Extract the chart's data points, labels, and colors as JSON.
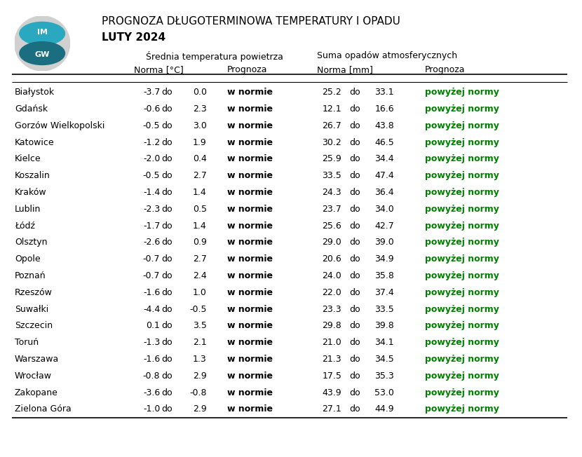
{
  "title1": "PROGNOZA DŁUGOTERMINOWA TEMPERATURY I OPADU",
  "title2": "LUTY 2024",
  "header_temp": "Średnia temperatura powietrza",
  "header_precip": "Suma opadów atmosferycznych",
  "subheader_temp_norma": "Norma [°C]",
  "subheader_temp_prog": "Prognoza",
  "subheader_precip_norma": "Norma [mm]",
  "subheader_precip_prog": "Prognoza",
  "cities": [
    "Białystok",
    "Gdańsk",
    "Gorzów Wielkopolski",
    "Katowice",
    "Kielce",
    "Koszalin",
    "Kraków",
    "Lublin",
    "Łódź",
    "Olsztyn",
    "Opole",
    "Poznań",
    "Rzeszów",
    "Suwałki",
    "Szczecin",
    "Toruń",
    "Warszawa",
    "Wrocław",
    "Zakopane",
    "Zielona Góra"
  ],
  "temp_norma_low": [
    -3.7,
    -0.6,
    -0.5,
    -1.2,
    -2.0,
    -0.5,
    -1.4,
    -2.3,
    -1.7,
    -2.6,
    -0.7,
    -0.7,
    -1.6,
    -4.4,
    0.1,
    -1.3,
    -1.6,
    -0.8,
    -3.6,
    -1.0
  ],
  "temp_norma_high": [
    0.0,
    2.3,
    3.0,
    1.9,
    0.4,
    2.7,
    1.4,
    0.5,
    1.4,
    0.9,
    2.7,
    2.4,
    1.0,
    -0.5,
    3.5,
    2.1,
    1.3,
    2.9,
    -0.8,
    2.9
  ],
  "temp_prognoza": [
    "w normie",
    "w normie",
    "w normie",
    "w normie",
    "w normie",
    "w normie",
    "w normie",
    "w normie",
    "w normie",
    "w normie",
    "w normie",
    "w normie",
    "w normie",
    "w normie",
    "w normie",
    "w normie",
    "w normie",
    "w normie",
    "w normie",
    "w normie"
  ],
  "precip_norma_low": [
    25.2,
    12.1,
    26.7,
    30.2,
    25.9,
    33.5,
    24.3,
    23.7,
    25.6,
    29.0,
    20.6,
    24.0,
    22.0,
    23.3,
    29.8,
    21.0,
    21.3,
    17.5,
    43.9,
    27.1
  ],
  "precip_norma_high": [
    33.1,
    16.6,
    43.8,
    46.5,
    34.4,
    47.4,
    36.4,
    34.0,
    42.7,
    39.0,
    34.9,
    35.8,
    37.4,
    33.5,
    39.8,
    34.1,
    34.5,
    35.3,
    53.0,
    44.9
  ],
  "precip_prognoza": [
    "powyżej normy",
    "powyżej normy",
    "powyżej normy",
    "powyżej normy",
    "powyżej normy",
    "powyżej normy",
    "powyżej normy",
    "powyżej normy",
    "powyżej normy",
    "powyżej normy",
    "powyżej normy",
    "powyżej normy",
    "powyżej normy",
    "powyżej normy",
    "powyżej normy",
    "powyżej normy",
    "powyżej normy",
    "powyżej normy",
    "powyżej normy",
    "powyżej normy"
  ],
  "green_color": "#008000",
  "black_color": "#000000",
  "background_color": "#ffffff",
  "line_color": "#000000",
  "figsize": [
    8.3,
    6.52
  ]
}
